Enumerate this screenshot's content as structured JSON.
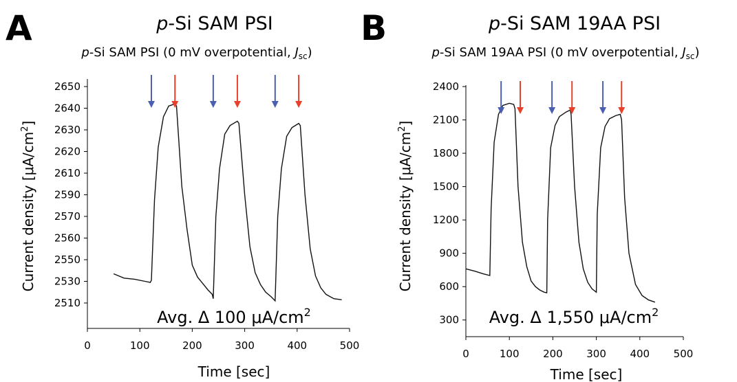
{
  "chart_data": [
    {
      "type": "line",
      "panel": "A",
      "title_italic": "p",
      "title_rest": "-Si SAM PSI",
      "subtitle": {
        "italic_prefix": "p",
        "text": "-Si SAM PSI (0 mV overpotential, ",
        "j": "J",
        "sub": "sc",
        "close": ")"
      },
      "xlabel": "Time [sec]",
      "ylabel": "Current density [μA/cm²]",
      "ylabel_main": "Current density [μA/cm",
      "ylabel_sup": "2",
      "ylabel_end": "]",
      "xlim": [
        0,
        500
      ],
      "ylim": [
        2500,
        2650
      ],
      "xticks": [
        "0",
        "100",
        "200",
        "300",
        "400",
        "500"
      ],
      "yticks": [
        "2510",
        "2530",
        "2550",
        "2560",
        "2570",
        "2590",
        "2610",
        "2620",
        "2630",
        "2640",
        "2650"
      ],
      "annotation_main": "Avg. Δ 100 μA/cm",
      "annotation_sup": "2",
      "light_on_arrows_x": [
        122,
        240,
        358
      ],
      "light_off_arrows_x": [
        167,
        286,
        403
      ],
      "arrow_colors": {
        "on": "#4a5fb0",
        "off": "#e8402a"
      },
      "series": [
        {
          "x": [
            50,
            70,
            90,
            110,
            120,
            122,
            128,
            135,
            145,
            155,
            167,
            170,
            180,
            190,
            200,
            210,
            220,
            230,
            238,
            240,
            245,
            252,
            262,
            272,
            286,
            289,
            300,
            310,
            320,
            330,
            340,
            350,
            356,
            358,
            363,
            370,
            380,
            390,
            403,
            406,
            415,
            425,
            435,
            445,
            455,
            470,
            485
          ],
          "y": [
            2537,
            2533,
            2532,
            2530,
            2529,
            2531,
            2585,
            2622,
            2636,
            2641,
            2642,
            2641,
            2598,
            2564,
            2545,
            2534,
            2528,
            2522,
            2518,
            2514,
            2570,
            2612,
            2628,
            2632,
            2634,
            2633,
            2590,
            2556,
            2538,
            2527,
            2520,
            2516,
            2513,
            2512,
            2570,
            2612,
            2627,
            2631,
            2633,
            2632,
            2590,
            2555,
            2535,
            2524,
            2518,
            2514,
            2513
          ]
        }
      ]
    },
    {
      "type": "line",
      "panel": "B",
      "title_italic": "p",
      "title_rest": "-Si SAM 19AA PSI",
      "subtitle": {
        "italic_prefix": "p",
        "text": "-Si SAM 19AA PSI (0 mV overpotential, ",
        "j": "J",
        "sub": "sc",
        "close": ")"
      },
      "xlabel": "Time [sec]",
      "ylabel": "Current density [μA/cm²]",
      "ylabel_main": "Current density [μA/cm",
      "ylabel_sup": "2",
      "ylabel_end": "]",
      "xlim": [
        0,
        500
      ],
      "ylim": [
        150,
        2400
      ],
      "xticks": [
        "0",
        "100",
        "200",
        "300",
        "400",
        "500"
      ],
      "yticks": [
        "300",
        "600",
        "900",
        "1200",
        "1500",
        "1800",
        "2100",
        "2400"
      ],
      "annotation_main": "Avg. Δ 1,550 μA/cm",
      "annotation_sup": "2",
      "light_on_arrows_x": [
        81,
        198,
        315
      ],
      "light_off_arrows_x": [
        125,
        244,
        358
      ],
      "arrow_colors": {
        "on": "#4a5fb0",
        "off": "#e8402a"
      },
      "series": [
        {
          "x": [
            0,
            20,
            40,
            55,
            58,
            65,
            75,
            85,
            100,
            110,
            113,
            120,
            130,
            140,
            150,
            160,
            170,
            180,
            186,
            188,
            195,
            205,
            215,
            230,
            240,
            242,
            250,
            260,
            270,
            280,
            290,
            300,
            302,
            310,
            320,
            330,
            345,
            355,
            358,
            365,
            375,
            390,
            405,
            420,
            435
          ],
          "y": [
            760,
            740,
            715,
            700,
            1300,
            1900,
            2150,
            2230,
            2250,
            2240,
            2200,
            1500,
            1000,
            780,
            650,
            600,
            570,
            550,
            545,
            1200,
            1850,
            2050,
            2130,
            2170,
            2190,
            2150,
            1500,
            1000,
            760,
            640,
            580,
            550,
            1250,
            1850,
            2040,
            2110,
            2140,
            2150,
            2100,
            1400,
            900,
            620,
            520,
            480,
            460
          ]
        }
      ]
    }
  ]
}
